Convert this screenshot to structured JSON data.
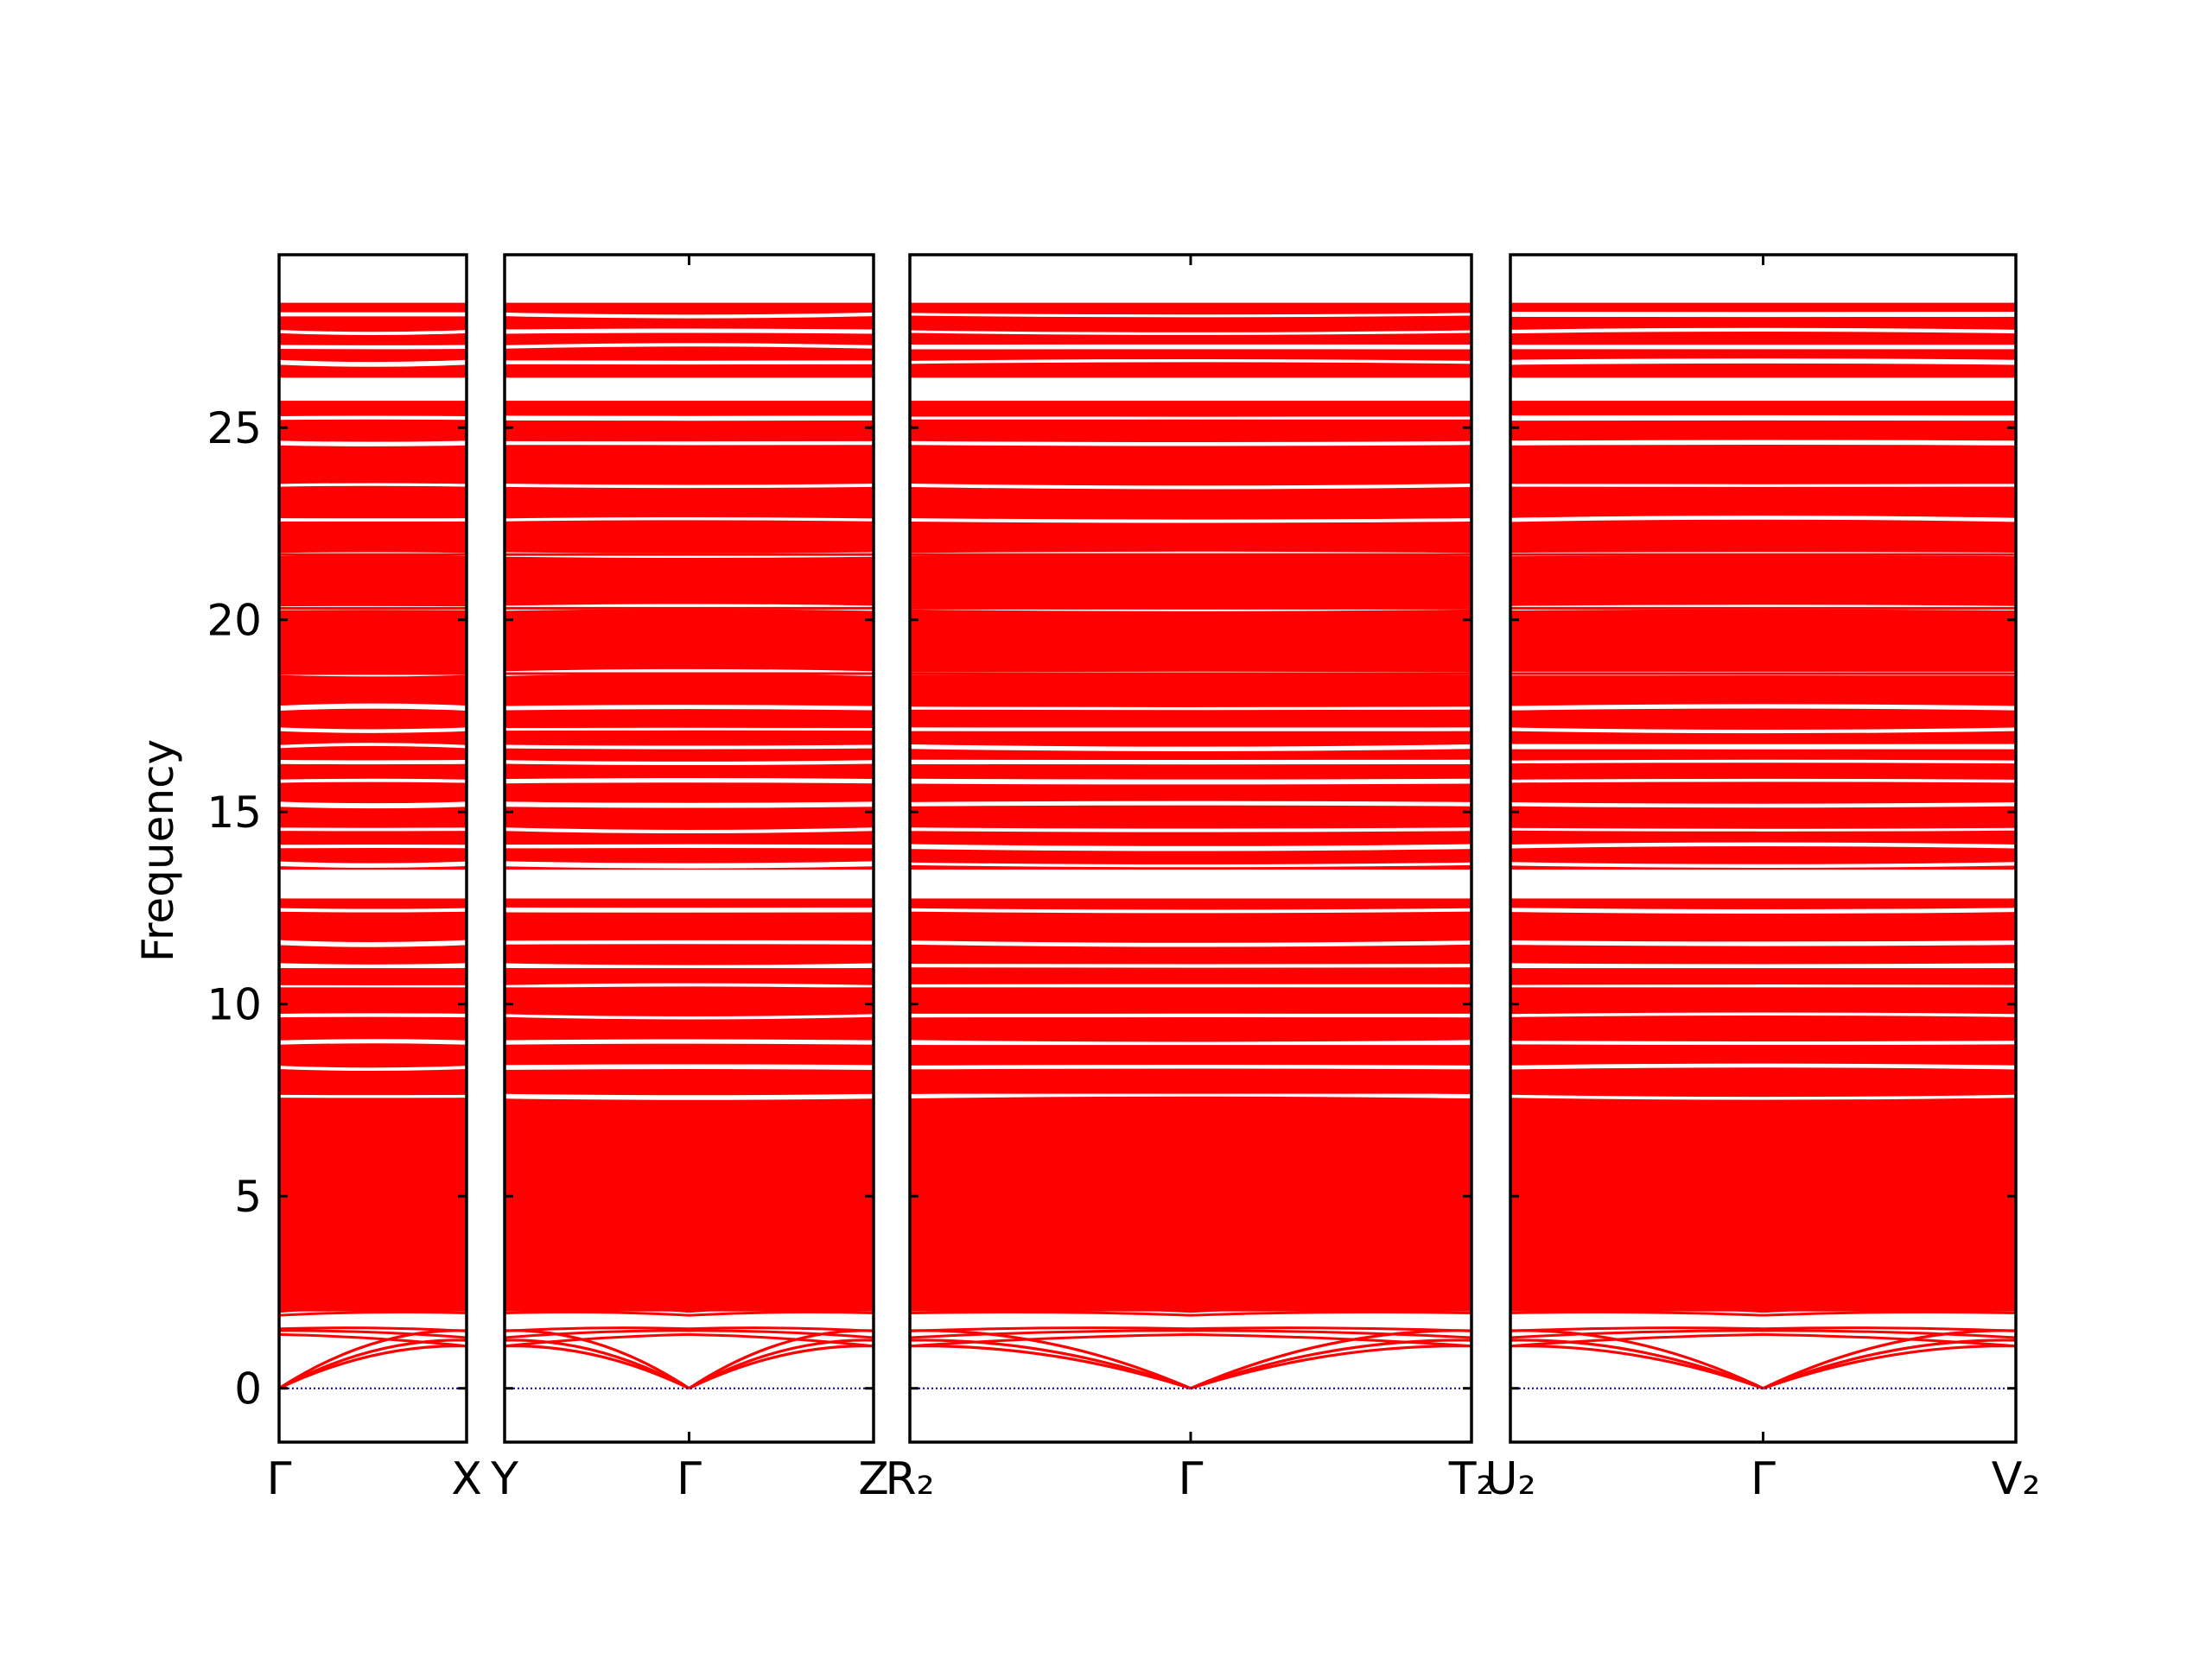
{
  "chart_data": {
    "type": "line",
    "title": "",
    "ylabel": "Frequency",
    "xlabel": "",
    "ylim": [
      -1.4,
      29.5
    ],
    "yticks": [
      0,
      5,
      10,
      15,
      20,
      25
    ],
    "grid": false,
    "legend": "none",
    "colors": {
      "band": "#ff0000",
      "zero_line": "#0000aa",
      "axes": "#000000"
    },
    "panels": [
      {
        "name": "panel-1",
        "kpoints": [
          "Γ",
          "X"
        ],
        "rel_width": 0.52
      },
      {
        "name": "panel-2",
        "kpoints": [
          "Y",
          "Γ",
          "Z"
        ],
        "rel_width": 1.0
      },
      {
        "name": "panel-3",
        "kpoints": [
          "R₂",
          "Γ",
          "T₂"
        ],
        "rel_width": 1.52
      },
      {
        "name": "panel-4",
        "kpoints": [
          "U₂",
          "Γ",
          "V₂"
        ],
        "rel_width": 1.37
      }
    ],
    "flat_band_levels": [
      28.2,
      27.7,
      27.3,
      26.9,
      26.5,
      25.6,
      25.0,
      24.3,
      23.0,
      21.7,
      20.3,
      18.6,
      18.0,
      17.4,
      16.9,
      16.5,
      16.1,
      15.5,
      14.8,
      14.3,
      13.8,
      12.7,
      12.2,
      11.8,
      11.4,
      10.9,
      10.4,
      9.9,
      9.3,
      8.9,
      8.5,
      8.2,
      7.7,
      7.3,
      6.9,
      6.4,
      5.9,
      5.4,
      4.9,
      4.4,
      3.8,
      3.1,
      2.5
    ],
    "low_bands_at_gamma_edge": [
      1.4,
      1.5,
      1.55,
      1.9,
      2.0
    ],
    "acoustic_branches_zone_edge": [
      1.1,
      1.25,
      1.5
    ]
  }
}
